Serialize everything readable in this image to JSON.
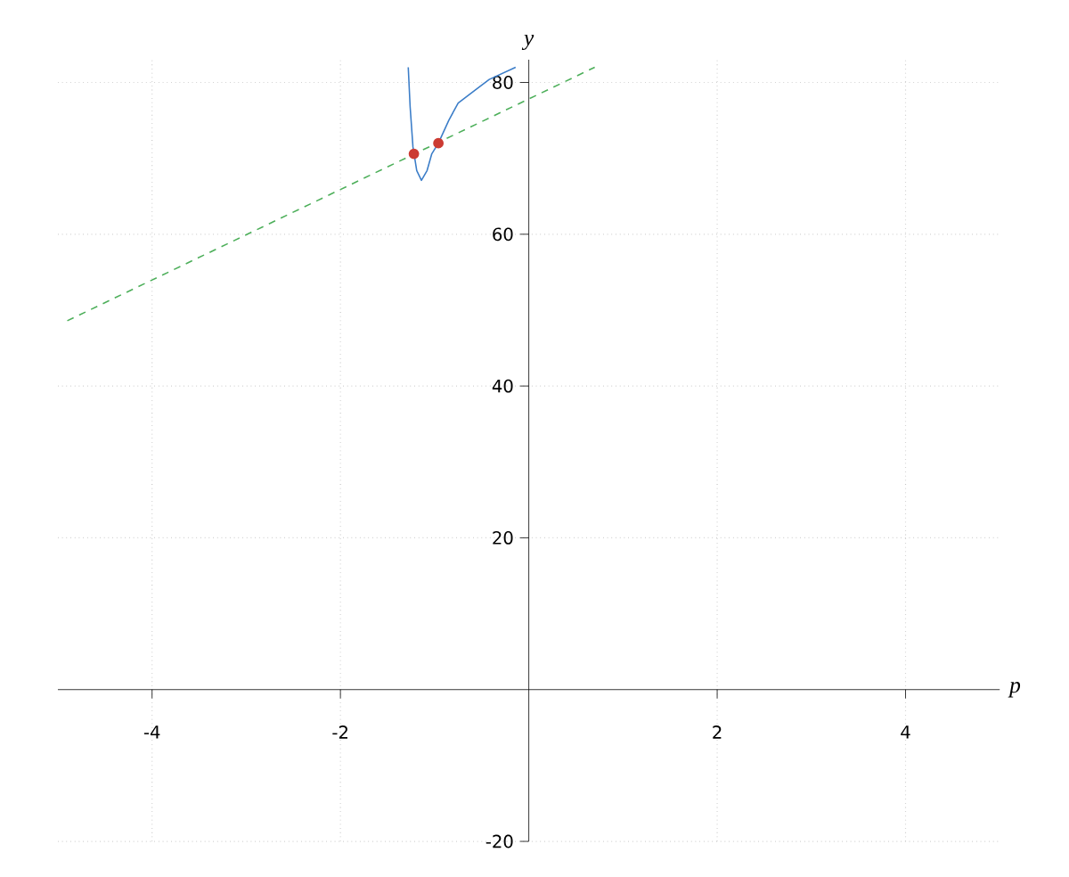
{
  "chart_data": {
    "type": "line",
    "xlabel": "p",
    "ylabel": "y",
    "xlim": [
      -5,
      5
    ],
    "ylim": [
      -20,
      83
    ],
    "xticks": [
      -4,
      -2,
      2,
      4
    ],
    "yticks": [
      -20,
      20,
      40,
      60,
      80
    ],
    "grid": true,
    "series": [
      {
        "color": "#3b7dc8",
        "line_style": "solid",
        "marker": "none",
        "x": [
          -1.28,
          -1.26,
          -1.23,
          -1.19,
          -1.14,
          -1.08,
          -1.03,
          -0.96,
          -0.85,
          -0.75,
          -0.57,
          -0.42,
          -0.14
        ],
        "values": [
          82,
          76.8,
          71.5,
          68.4,
          67.1,
          68.4,
          70.6,
          72.0,
          75.0,
          77.3,
          79.0,
          80.4,
          82
        ]
      },
      {
        "color": "#4daf5a",
        "line_style": "dashed",
        "marker": "none",
        "x": [
          -4.9,
          0.7
        ],
        "values": [
          48.6,
          82
        ]
      },
      {
        "type": "scatter",
        "color": "#cc3b33",
        "marker": "circle",
        "x": [
          -1.22,
          -0.96
        ],
        "values": [
          70.6,
          72.0
        ]
      }
    ]
  }
}
